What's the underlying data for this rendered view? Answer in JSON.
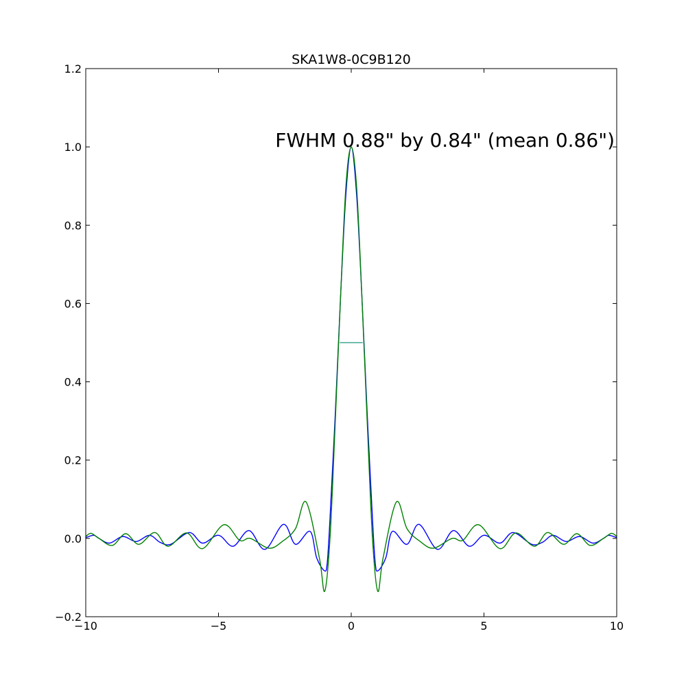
{
  "chart_data": {
    "type": "line",
    "title": "SKA1W8-0C9B120",
    "xlabel": "",
    "ylabel": "",
    "xlim": [
      -10,
      10
    ],
    "ylim": [
      -0.2,
      1.2
    ],
    "xticks": [
      -10,
      -5,
      0,
      5,
      10
    ],
    "xtick_labels": [
      "−10",
      "−5",
      "0",
      "5",
      "10"
    ],
    "yticks": [
      -0.2,
      0.0,
      0.2,
      0.4,
      0.6,
      0.8,
      1.0,
      1.2
    ],
    "ytick_labels": [
      "−0.2",
      "0.0",
      "0.2",
      "0.4",
      "0.6",
      "0.8",
      "1.0",
      "1.2"
    ],
    "grid": false,
    "annotation": "FWHM 0.88\" by 0.84\" (mean 0.86\")",
    "series": [
      {
        "color": "#0000ff",
        "x": [
          -10,
          -9.7,
          -9.5,
          -9.1,
          -8.6,
          -8.1,
          -7.6,
          -7.2,
          -6.8,
          -6.1,
          -5.6,
          -5.0,
          -4.45,
          -3.85,
          -3.25,
          -2.55,
          -2.1,
          -1.55,
          -1.3,
          -1.0,
          -0.9,
          -0.8,
          -0.6,
          -0.4,
          -0.2,
          0,
          0.2,
          0.4,
          0.6,
          0.8,
          0.9,
          1.0,
          1.3,
          1.55,
          2.1,
          2.55,
          3.25,
          3.85,
          4.45,
          5.0,
          5.6,
          6.1,
          6.8,
          7.2,
          7.6,
          8.1,
          8.6,
          9.1,
          9.5,
          9.7,
          10
        ],
        "y": [
          0.002,
          0.008,
          0.0,
          -0.012,
          0.005,
          -0.008,
          0.008,
          -0.01,
          -0.015,
          0.015,
          -0.012,
          0.008,
          -0.02,
          0.02,
          -0.028,
          0.036,
          -0.015,
          0.018,
          -0.05,
          -0.083,
          -0.06,
          0.05,
          0.32,
          0.62,
          0.88,
          1.0,
          0.88,
          0.62,
          0.32,
          0.05,
          -0.06,
          -0.083,
          -0.05,
          0.018,
          -0.015,
          0.036,
          -0.028,
          0.02,
          -0.02,
          0.008,
          -0.012,
          0.015,
          -0.015,
          -0.01,
          0.008,
          -0.008,
          0.005,
          -0.012,
          0.0,
          0.008,
          0.002
        ]
      },
      {
        "color": "#008000",
        "x": [
          -10,
          -9.8,
          -9.5,
          -9.0,
          -8.5,
          -8.0,
          -7.4,
          -6.9,
          -6.2,
          -5.6,
          -4.8,
          -4.2,
          -3.8,
          -3.1,
          -2.6,
          -2.1,
          -1.7,
          -1.2,
          -1.0,
          -0.8,
          -0.6,
          -0.4,
          -0.2,
          0,
          0.2,
          0.4,
          0.6,
          0.8,
          1.0,
          1.2,
          1.7,
          2.1,
          2.6,
          3.1,
          3.8,
          4.2,
          4.8,
          5.6,
          6.2,
          6.9,
          7.4,
          8.0,
          8.5,
          9.0,
          9.5,
          9.8,
          10
        ],
        "y": [
          0.005,
          0.013,
          0.0,
          -0.018,
          0.012,
          -0.015,
          0.015,
          -0.02,
          0.014,
          -0.026,
          0.035,
          -0.005,
          0.0,
          -0.025,
          -0.008,
          0.025,
          0.093,
          -0.05,
          -0.135,
          0.0,
          0.3,
          0.62,
          0.9,
          1.0,
          0.9,
          0.62,
          0.3,
          0.0,
          -0.135,
          -0.05,
          0.093,
          0.025,
          -0.008,
          -0.025,
          0.0,
          -0.005,
          0.035,
          -0.026,
          0.014,
          -0.02,
          0.015,
          -0.015,
          0.012,
          -0.018,
          0.0,
          0.013,
          0.005
        ]
      }
    ],
    "fwhm_marker": {
      "color": "#3aa58f",
      "x": [
        -0.43,
        0.43
      ],
      "y": 0.5
    }
  }
}
